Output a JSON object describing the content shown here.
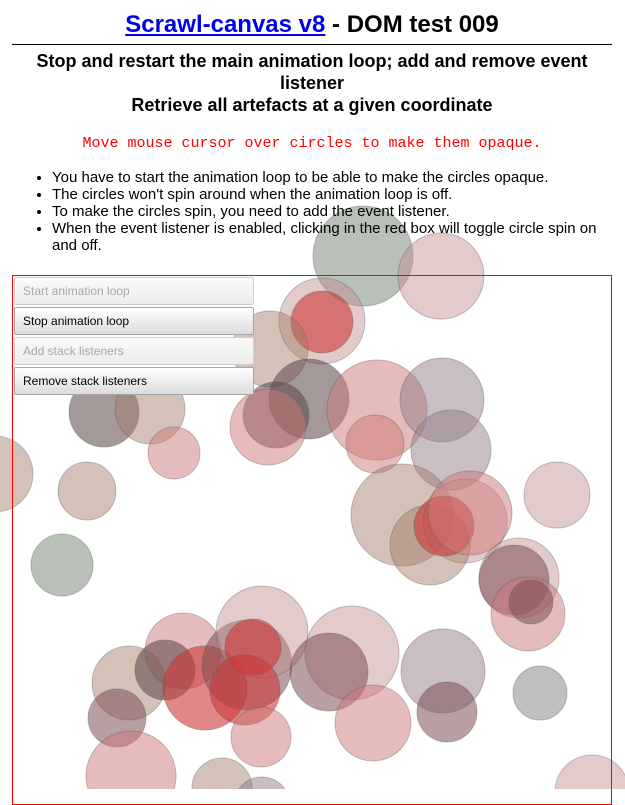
{
  "header": {
    "title_link": "Scrawl-canvas v8",
    "title_rest": " - DOM test 009"
  },
  "subtitle": {
    "line1": "Stop and restart the main animation loop; add and remove event listener",
    "line2": "Retrieve all artefacts at a given coordinate"
  },
  "instruction": "Move mouse cursor over circles to make them opaque.",
  "notes": [
    "You have to start the animation loop to be able to make the circles opaque.",
    "The circles won't spin around when the animation loop is off.",
    "To make the circles spin, you need to add the event listener.",
    "When the event listener is enabled, clicking in the red box will toggle circle spin on and off."
  ],
  "buttons": {
    "start_loop": "Start animation loop",
    "stop_loop": "Stop animation loop",
    "add_listeners": "Add stack listeners",
    "remove_listeners": "Remove stack listeners"
  },
  "colors": {
    "canvas_border": "#ff0000",
    "instruction_text": "#ff0000",
    "link": "#0000ee"
  }
}
